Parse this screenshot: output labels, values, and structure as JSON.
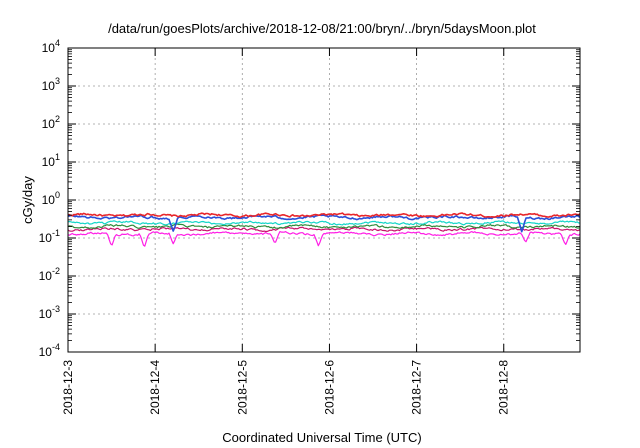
{
  "chart_data": {
    "type": "line",
    "title": "/data/run/goesPlots/archive/2018-12-08/21:00/bryn/../bryn/5daysMoon.plot",
    "xlabel": "Coordinated Universal Time (UTC)",
    "ylabel": "cGy/day",
    "y_scale": "log",
    "ylim": [
      0.0001,
      10000
    ],
    "xlim": [
      "2018-12-03",
      "2018-12-08 21:00"
    ],
    "x_ticks": [
      "2018-12-3",
      "2018-12-4",
      "2018-12-5",
      "2018-12-6",
      "2018-12-7",
      "2018-12-8"
    ],
    "y_ticks": [
      {
        "base": "10",
        "exp": "-4"
      },
      {
        "base": "10",
        "exp": "-3"
      },
      {
        "base": "10",
        "exp": "-2"
      },
      {
        "base": "10",
        "exp": "-1"
      },
      {
        "base": "10",
        "exp": "0"
      },
      {
        "base": "10",
        "exp": "1"
      },
      {
        "base": "10",
        "exp": "2"
      },
      {
        "base": "10",
        "exp": "3"
      },
      {
        "base": "10",
        "exp": "4"
      }
    ],
    "grid": true,
    "series": [
      {
        "color": "#e8262b",
        "level": 0.4,
        "dips": [],
        "values": []
      },
      {
        "color": "#2a4fd9",
        "level": 0.35,
        "dips": [
          {
            "x": "2018-12-04 05:00",
            "y": 0.15
          },
          {
            "x": "2018-12-08 05:00",
            "y": 0.14
          }
        ]
      },
      {
        "color": "#13d6c8",
        "level": 0.25,
        "dips": []
      },
      {
        "color": "#2e8b3a",
        "level": 0.2,
        "dips": []
      },
      {
        "color": "#c8106a",
        "level": 0.17,
        "dips": []
      },
      {
        "color": "#ff1ee6",
        "level": 0.13,
        "dips": [
          {
            "x": "2018-12-03 12:00",
            "y": 0.06
          },
          {
            "x": "2018-12-03 21:00",
            "y": 0.055
          },
          {
            "x": "2018-12-04 05:00",
            "y": 0.07
          },
          {
            "x": "2018-12-05 09:00",
            "y": 0.07
          },
          {
            "x": "2018-12-05 21:00",
            "y": 0.06
          },
          {
            "x": "2018-12-08 06:00",
            "y": 0.075
          },
          {
            "x": "2018-12-08 17:00",
            "y": 0.065
          }
        ]
      }
    ]
  }
}
